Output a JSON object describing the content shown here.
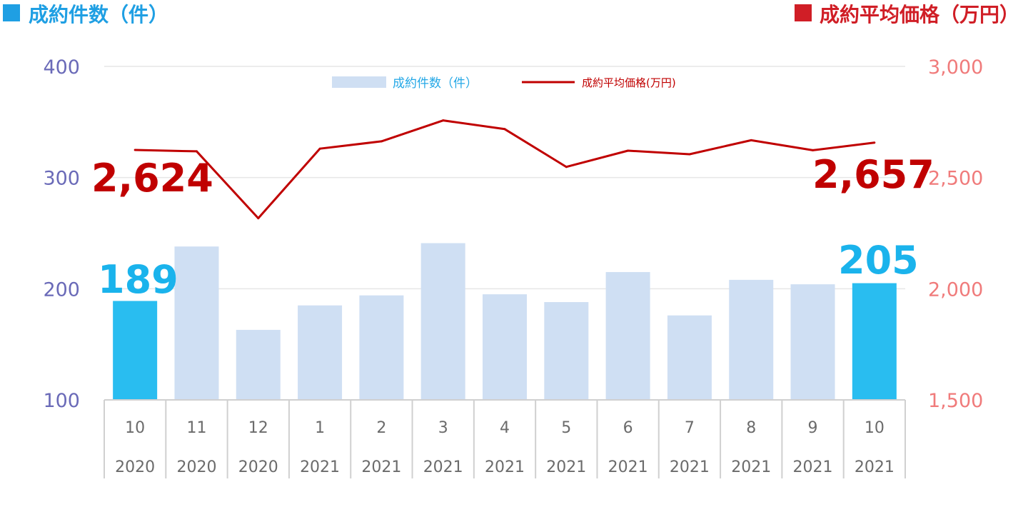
{
  "header": {
    "left_title": "成約件数（件）",
    "right_title": "成約平均価格（万円）",
    "left_marker_color": "#1f9fe3",
    "right_marker_color": "#d01e26"
  },
  "legend": {
    "bar_label": "成約件数（件）",
    "line_label": "成約平均価格(万円)"
  },
  "callouts": {
    "start_price": "2,624",
    "end_price": "2,657",
    "start_count": "189",
    "end_count": "205"
  },
  "colors": {
    "bar": "#cfdff3",
    "bar_highlight": "#29bdf0",
    "line": "#c00000",
    "gridline": "#e6e6e6",
    "axis": "#d0d0d0"
  },
  "chart_data": {
    "type": "bar",
    "categories": [
      {
        "month": "10",
        "year": "2020"
      },
      {
        "month": "11",
        "year": "2020"
      },
      {
        "month": "12",
        "year": "2020"
      },
      {
        "month": "1",
        "year": "2021"
      },
      {
        "month": "2",
        "year": "2021"
      },
      {
        "month": "3",
        "year": "2021"
      },
      {
        "month": "4",
        "year": "2021"
      },
      {
        "month": "5",
        "year": "2021"
      },
      {
        "month": "6",
        "year": "2021"
      },
      {
        "month": "7",
        "year": "2021"
      },
      {
        "month": "8",
        "year": "2021"
      },
      {
        "month": "9",
        "year": "2021"
      },
      {
        "month": "10",
        "year": "2021"
      }
    ],
    "series": [
      {
        "name": "成約件数（件）",
        "type": "bar",
        "axis": "left",
        "values": [
          189,
          238,
          163,
          185,
          194,
          241,
          195,
          188,
          215,
          176,
          208,
          204,
          205
        ],
        "highlight": [
          true,
          false,
          false,
          false,
          false,
          false,
          false,
          false,
          false,
          false,
          false,
          false,
          true
        ]
      },
      {
        "name": "成約平均価格(万円)",
        "type": "line",
        "axis": "right",
        "values": [
          2624,
          2618,
          2317,
          2630,
          2663,
          2757,
          2718,
          2548,
          2621,
          2605,
          2668,
          2623,
          2657
        ]
      }
    ],
    "y_left": {
      "ylim": [
        100,
        400
      ],
      "ticks": [
        "100",
        "200",
        "300",
        "400"
      ]
    },
    "y_right": {
      "ylim": [
        1500,
        3000
      ],
      "ticks": [
        "1,500",
        "2,000",
        "2,500",
        "3,000"
      ]
    },
    "grid": true,
    "legend_position": "top-center"
  }
}
